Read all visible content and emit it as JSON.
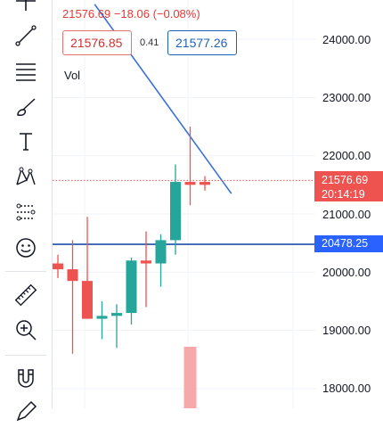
{
  "header": {
    "price_change": "21576.69  −18.06 (−0.08%)",
    "sell_price": "21576.85",
    "spread": "0.41",
    "buy_price": "21577.26",
    "volume_label": "Vol"
  },
  "price_axis": {
    "labels": [
      "24000.00",
      "23000.00",
      "22000.00",
      "21000.00",
      "20000.00",
      "19000.00",
      "18000.00"
    ]
  },
  "last_price_tag": {
    "price": "21576.69",
    "countdown": "20:14:19"
  },
  "horizontal_line_tag": {
    "price": "20478.25"
  },
  "toolbar": {
    "tools": [
      "crosshair-icon",
      "trend-line-icon",
      "fib-levels-icon",
      "brush-icon",
      "text-tool-icon",
      "pattern-icon",
      "forecast-icon",
      "emoji-icon",
      "ruler-icon",
      "zoom-in-icon",
      "magnet-icon",
      "pencil-icon"
    ]
  },
  "colors": {
    "up": "#26a69a",
    "down": "#ef5350",
    "line": "#2962ff",
    "trend": "#3a6fd8",
    "volume": "#f7a8a8"
  },
  "chart_data": {
    "type": "candlestick",
    "y_range": [
      17700,
      24300
    ],
    "candles": [
      {
        "open": 20150,
        "high": 20300,
        "low": 19900,
        "close": 20050
      },
      {
        "open": 20050,
        "high": 20550,
        "low": 18600,
        "close": 19850
      },
      {
        "open": 19850,
        "high": 20950,
        "low": 19200,
        "close": 19200
      },
      {
        "open": 19200,
        "high": 19500,
        "low": 18850,
        "close": 19250
      },
      {
        "open": 19250,
        "high": 19450,
        "low": 18700,
        "close": 19300
      },
      {
        "open": 19300,
        "high": 20250,
        "low": 19100,
        "close": 20200
      },
      {
        "open": 20200,
        "high": 20700,
        "low": 19400,
        "close": 20150
      },
      {
        "open": 20150,
        "high": 20650,
        "low": 19750,
        "close": 20550
      },
      {
        "open": 20550,
        "high": 21850,
        "low": 20300,
        "close": 21550
      },
      {
        "open": 21550,
        "high": 22500,
        "low": 21150,
        "close": 21500
      },
      {
        "open": 21550,
        "high": 21650,
        "low": 21400,
        "close": 21500
      }
    ],
    "horizontal_line": 20478.25,
    "last_price": 21576.69,
    "trend_line": [
      {
        "bar": 2.5,
        "price": 24600
      },
      {
        "bar": 11.5,
        "price": 21350
      }
    ],
    "volume": [
      {
        "bar": 9,
        "value": "partial"
      }
    ]
  }
}
